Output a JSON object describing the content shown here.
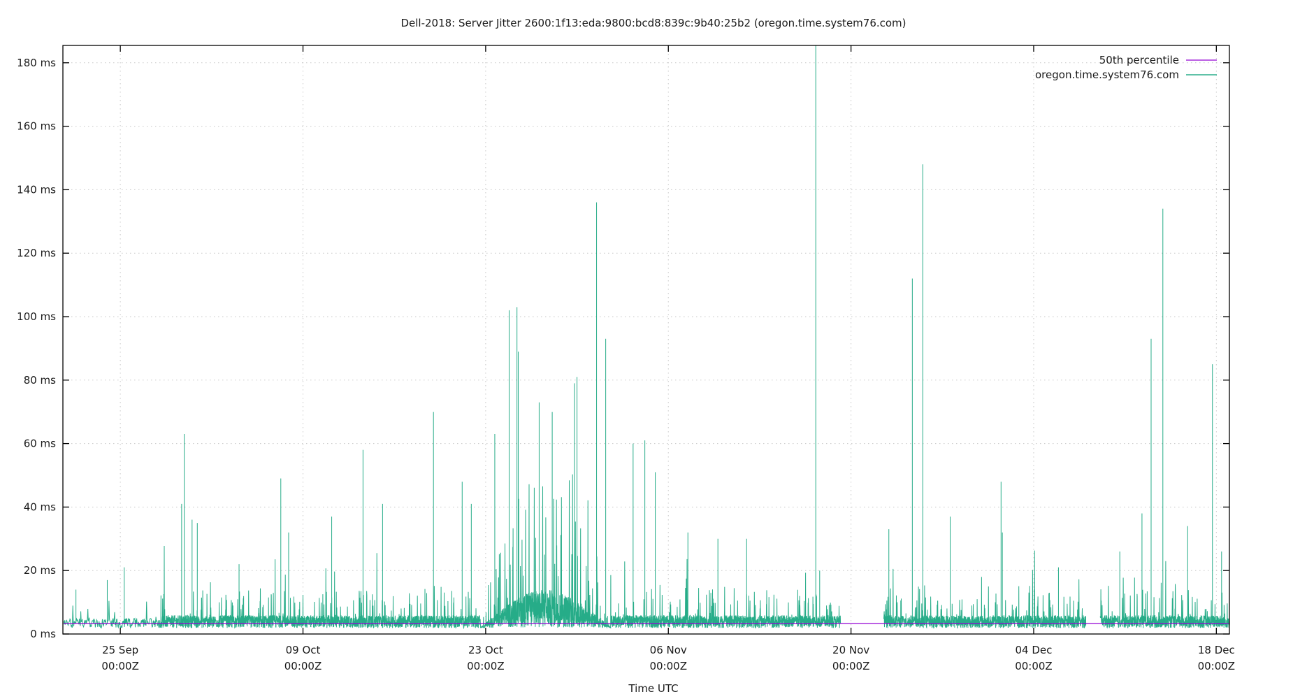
{
  "chart_data": {
    "type": "line",
    "title": "Dell-2018: Server Jitter 2600:1f13:eda:9800:bcd8:839c:9b40:25b2 (oregon.time.system76.com)",
    "xlabel": "Time UTC",
    "ylabel": "",
    "x_ticks": [
      {
        "label": "25 Sep",
        "sub": "00:00Z",
        "day": 4.4
      },
      {
        "label": "09 Oct",
        "sub": "00:00Z",
        "day": 18.4
      },
      {
        "label": "23 Oct",
        "sub": "00:00Z",
        "day": 32.4
      },
      {
        "label": "06 Nov",
        "sub": "00:00Z",
        "day": 46.4
      },
      {
        "label": "20 Nov",
        "sub": "00:00Z",
        "day": 60.4
      },
      {
        "label": "04 Dec",
        "sub": "00:00Z",
        "day": 74.4
      },
      {
        "label": "18 Dec",
        "sub": "00:00Z",
        "day": 88.4
      }
    ],
    "y_ticks": [
      {
        "label": "0 ms",
        "value": 0
      },
      {
        "label": "20 ms",
        "value": 20
      },
      {
        "label": "40 ms",
        "value": 40
      },
      {
        "label": "60 ms",
        "value": 60
      },
      {
        "label": "80 ms",
        "value": 80
      },
      {
        "label": "100 ms",
        "value": 100
      },
      {
        "label": "120 ms",
        "value": 120
      },
      {
        "label": "140 ms",
        "value": 140
      },
      {
        "label": "160 ms",
        "value": 160
      },
      {
        "label": "180 ms",
        "value": 180
      }
    ],
    "xlim_days": [
      0,
      89.4
    ],
    "ylim": [
      0,
      185
    ],
    "grid": true,
    "legend": {
      "position": "top-right"
    },
    "series": [
      {
        "name": "50th percentile",
        "color": "#9400d3",
        "kind": "median",
        "value": 3.3
      },
      {
        "name": "oregon.time.system76.com",
        "color": "#009e73",
        "kind": "jitter",
        "baseline_ms": 3.5,
        "gaps_days": [
          [
            59.6,
            62.9
          ],
          [
            78.4,
            79.5
          ]
        ],
        "spikes": [
          {
            "day": 1.0,
            "ms": 14
          },
          {
            "day": 3.4,
            "ms": 17
          },
          {
            "day": 4.7,
            "ms": 21
          },
          {
            "day": 9.1,
            "ms": 41
          },
          {
            "day": 9.3,
            "ms": 63
          },
          {
            "day": 9.9,
            "ms": 36
          },
          {
            "day": 10.3,
            "ms": 35
          },
          {
            "day": 13.5,
            "ms": 22
          },
          {
            "day": 16.7,
            "ms": 49
          },
          {
            "day": 17.3,
            "ms": 32
          },
          {
            "day": 20.6,
            "ms": 37
          },
          {
            "day": 23.0,
            "ms": 58
          },
          {
            "day": 24.5,
            "ms": 41
          },
          {
            "day": 28.4,
            "ms": 70
          },
          {
            "day": 30.6,
            "ms": 48
          },
          {
            "day": 31.3,
            "ms": 41
          },
          {
            "day": 33.1,
            "ms": 63
          },
          {
            "day": 34.2,
            "ms": 102
          },
          {
            "day": 34.8,
            "ms": 103
          },
          {
            "day": 34.9,
            "ms": 89
          },
          {
            "day": 36.5,
            "ms": 73
          },
          {
            "day": 37.5,
            "ms": 70
          },
          {
            "day": 39.2,
            "ms": 79
          },
          {
            "day": 39.4,
            "ms": 81
          },
          {
            "day": 40.9,
            "ms": 136
          },
          {
            "day": 41.6,
            "ms": 93
          },
          {
            "day": 43.7,
            "ms": 60
          },
          {
            "day": 44.6,
            "ms": 61
          },
          {
            "day": 45.4,
            "ms": 51
          },
          {
            "day": 47.9,
            "ms": 32
          },
          {
            "day": 50.2,
            "ms": 30
          },
          {
            "day": 52.4,
            "ms": 30
          },
          {
            "day": 57.7,
            "ms": 186
          },
          {
            "day": 58.0,
            "ms": 20
          },
          {
            "day": 63.3,
            "ms": 33
          },
          {
            "day": 65.1,
            "ms": 112
          },
          {
            "day": 65.9,
            "ms": 148
          },
          {
            "day": 68.0,
            "ms": 37
          },
          {
            "day": 71.9,
            "ms": 48
          },
          {
            "day": 72.0,
            "ms": 32
          },
          {
            "day": 76.3,
            "ms": 21
          },
          {
            "day": 81.0,
            "ms": 26
          },
          {
            "day": 82.7,
            "ms": 38
          },
          {
            "day": 83.4,
            "ms": 93
          },
          {
            "day": 84.3,
            "ms": 134
          },
          {
            "day": 86.2,
            "ms": 34
          },
          {
            "day": 88.1,
            "ms": 85
          },
          {
            "day": 88.8,
            "ms": 26
          }
        ],
        "dense_period_days": [
          32.0,
          42.0
        ]
      }
    ]
  }
}
